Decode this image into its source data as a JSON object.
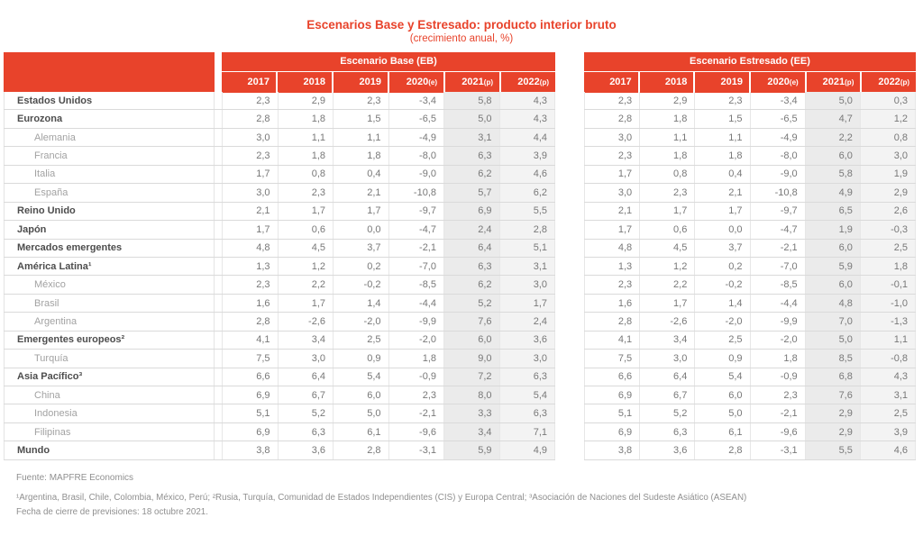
{
  "colors": {
    "accent": "#E8432B",
    "col_2021_bg": "#ebebeb",
    "col_2022_bg": "#f3f3f3",
    "header_text": "#ffffff",
    "label_bold": "#4d4d4d",
    "label_sub": "#a2a2a2",
    "value_text": "#787878"
  },
  "chart_data": {
    "type": "table",
    "title": "Escenarios Base y Estresado: producto interior bruto",
    "subtitle": "(crecimiento anual, %)",
    "groups": [
      {
        "id": "eb",
        "label": "Escenario Base (EB)"
      },
      {
        "id": "ee",
        "label": "Escenario Estresado (EE)"
      }
    ],
    "columns": [
      {
        "year": "2017",
        "mark": ""
      },
      {
        "year": "2018",
        "mark": ""
      },
      {
        "year": "2019",
        "mark": ""
      },
      {
        "year": "2020",
        "mark": "(e)"
      },
      {
        "year": "2021",
        "mark": "(p)"
      },
      {
        "year": "2022",
        "mark": "(p)"
      }
    ],
    "rows": [
      {
        "label": "Estados Unidos",
        "level": 0,
        "eb": [
          "2,3",
          "2,9",
          "2,3",
          "-3,4",
          "5,8",
          "4,3"
        ],
        "ee": [
          "2,3",
          "2,9",
          "2,3",
          "-3,4",
          "5,0",
          "0,3"
        ]
      },
      {
        "label": "Eurozona",
        "level": 0,
        "eb": [
          "2,8",
          "1,8",
          "1,5",
          "-6,5",
          "5,0",
          "4,3"
        ],
        "ee": [
          "2,8",
          "1,8",
          "1,5",
          "-6,5",
          "4,7",
          "1,2"
        ]
      },
      {
        "label": "Alemania",
        "level": 1,
        "eb": [
          "3,0",
          "1,1",
          "1,1",
          "-4,9",
          "3,1",
          "4,4"
        ],
        "ee": [
          "3,0",
          "1,1",
          "1,1",
          "-4,9",
          "2,2",
          "0,8"
        ]
      },
      {
        "label": "Francia",
        "level": 1,
        "eb": [
          "2,3",
          "1,8",
          "1,8",
          "-8,0",
          "6,3",
          "3,9"
        ],
        "ee": [
          "2,3",
          "1,8",
          "1,8",
          "-8,0",
          "6,0",
          "3,0"
        ]
      },
      {
        "label": "Italia",
        "level": 1,
        "eb": [
          "1,7",
          "0,8",
          "0,4",
          "-9,0",
          "6,2",
          "4,6"
        ],
        "ee": [
          "1,7",
          "0,8",
          "0,4",
          "-9,0",
          "5,8",
          "1,9"
        ]
      },
      {
        "label": "España",
        "level": 1,
        "eb": [
          "3,0",
          "2,3",
          "2,1",
          "-10,8",
          "5,7",
          "6,2"
        ],
        "ee": [
          "3,0",
          "2,3",
          "2,1",
          "-10,8",
          "4,9",
          "2,9"
        ]
      },
      {
        "label": "Reino Unido",
        "level": 0,
        "eb": [
          "2,1",
          "1,7",
          "1,7",
          "-9,7",
          "6,9",
          "5,5"
        ],
        "ee": [
          "2,1",
          "1,7",
          "1,7",
          "-9,7",
          "6,5",
          "2,6"
        ]
      },
      {
        "label": "Japón",
        "level": 0,
        "eb": [
          "1,7",
          "0,6",
          "0,0",
          "-4,7",
          "2,4",
          "2,8"
        ],
        "ee": [
          "1,7",
          "0,6",
          "0,0",
          "-4,7",
          "1,9",
          "-0,3"
        ]
      },
      {
        "label": "Mercados emergentes",
        "level": 0,
        "eb": [
          "4,8",
          "4,5",
          "3,7",
          "-2,1",
          "6,4",
          "5,1"
        ],
        "ee": [
          "4,8",
          "4,5",
          "3,7",
          "-2,1",
          "6,0",
          "2,5"
        ]
      },
      {
        "label": "América Latina¹",
        "level": 0,
        "eb": [
          "1,3",
          "1,2",
          "0,2",
          "-7,0",
          "6,3",
          "3,1"
        ],
        "ee": [
          "1,3",
          "1,2",
          "0,2",
          "-7,0",
          "5,9",
          "1,8"
        ]
      },
      {
        "label": "México",
        "level": 1,
        "eb": [
          "2,3",
          "2,2",
          "-0,2",
          "-8,5",
          "6,2",
          "3,0"
        ],
        "ee": [
          "2,3",
          "2,2",
          "-0,2",
          "-8,5",
          "6,0",
          "-0,1"
        ]
      },
      {
        "label": "Brasil",
        "level": 1,
        "eb": [
          "1,6",
          "1,7",
          "1,4",
          "-4,4",
          "5,2",
          "1,7"
        ],
        "ee": [
          "1,6",
          "1,7",
          "1,4",
          "-4,4",
          "4,8",
          "-1,0"
        ]
      },
      {
        "label": "Argentina",
        "level": 1,
        "eb": [
          "2,8",
          "-2,6",
          "-2,0",
          "-9,9",
          "7,6",
          "2,4"
        ],
        "ee": [
          "2,8",
          "-2,6",
          "-2,0",
          "-9,9",
          "7,0",
          "-1,3"
        ]
      },
      {
        "label": "Emergentes europeos²",
        "level": 0,
        "eb": [
          "4,1",
          "3,4",
          "2,5",
          "-2,0",
          "6,0",
          "3,6"
        ],
        "ee": [
          "4,1",
          "3,4",
          "2,5",
          "-2,0",
          "5,0",
          "1,1"
        ]
      },
      {
        "label": "Turquía",
        "level": 1,
        "eb": [
          "7,5",
          "3,0",
          "0,9",
          "1,8",
          "9,0",
          "3,0"
        ],
        "ee": [
          "7,5",
          "3,0",
          "0,9",
          "1,8",
          "8,5",
          "-0,8"
        ]
      },
      {
        "label": "Asia Pacífico³",
        "level": 0,
        "eb": [
          "6,6",
          "6,4",
          "5,4",
          "-0,9",
          "7,2",
          "6,3"
        ],
        "ee": [
          "6,6",
          "6,4",
          "5,4",
          "-0,9",
          "6,8",
          "4,3"
        ]
      },
      {
        "label": "China",
        "level": 1,
        "eb": [
          "6,9",
          "6,7",
          "6,0",
          "2,3",
          "8,0",
          "5,4"
        ],
        "ee": [
          "6,9",
          "6,7",
          "6,0",
          "2,3",
          "7,6",
          "3,1"
        ]
      },
      {
        "label": "Indonesia",
        "level": 1,
        "eb": [
          "5,1",
          "5,2",
          "5,0",
          "-2,1",
          "3,3",
          "6,3"
        ],
        "ee": [
          "5,1",
          "5,2",
          "5,0",
          "-2,1",
          "2,9",
          "2,5"
        ]
      },
      {
        "label": "Filipinas",
        "level": 1,
        "eb": [
          "6,9",
          "6,3",
          "6,1",
          "-9,6",
          "3,4",
          "7,1"
        ],
        "ee": [
          "6,9",
          "6,3",
          "6,1",
          "-9,6",
          "2,9",
          "3,9"
        ]
      },
      {
        "label": "Mundo",
        "level": 0,
        "eb": [
          "3,8",
          "3,6",
          "2,8",
          "-3,1",
          "5,9",
          "4,9"
        ],
        "ee": [
          "3,8",
          "3,6",
          "2,8",
          "-3,1",
          "5,5",
          "4,6"
        ]
      }
    ]
  },
  "footer": {
    "fuente": "Fuente: MAPFRE Economics",
    "footnote": "¹Argentina, Brasil, Chile, Colombia, México, Perú; ²Rusia, Turquía, Comunidad de Estados Independientes (CIS) y Europa Central; ³Asociación de Naciones del Sudeste Asiático (ASEAN)",
    "fecha": "Fecha de cierre de previsiones: 18 octubre 2021."
  }
}
